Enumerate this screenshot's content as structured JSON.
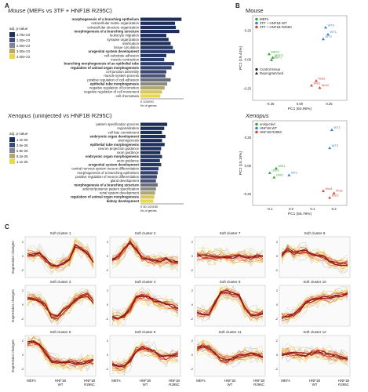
{
  "panel_a": {
    "label": "A",
    "mouse": {
      "title": "Mouse (MEFs vs 3TF + HNF1B R295C)",
      "legend_title": "adj. p-value",
      "legend_values": [
        "3.75e-23",
        "1.00e-23",
        "2.00e-23",
        "3.00e-23",
        "4.00e-23"
      ],
      "legend_colors": [
        "#1f2f5c",
        "#3e4b7a",
        "#7d8596",
        "#b8a864",
        "#e8d84a"
      ],
      "terms": [
        {
          "label": "morphogenesis of a branching epithelium",
          "bold": true,
          "value": 0.95,
          "color": "#1f2f5c"
        },
        {
          "label": "extracellular matrix organization",
          "bold": false,
          "value": 0.8,
          "color": "#1f2f5c"
        },
        {
          "label": "extracellular structure organization",
          "bold": false,
          "value": 0.82,
          "color": "#1f2f5c"
        },
        {
          "label": "morphogenesis of a branching structure",
          "bold": true,
          "value": 0.9,
          "color": "#1f2f5c"
        },
        {
          "label": "leukocyte migration",
          "bold": false,
          "value": 0.6,
          "color": "#1f2f5c"
        },
        {
          "label": "synapse organization",
          "bold": false,
          "value": 0.65,
          "color": "#1f2f5c"
        },
        {
          "label": "ossification",
          "bold": false,
          "value": 0.7,
          "color": "#1f2f5c"
        },
        {
          "label": "tissue circulation",
          "bold": false,
          "value": 0.75,
          "color": "#263766"
        },
        {
          "label": "urogenital system development",
          "bold": true,
          "value": 0.8,
          "color": "#263766"
        },
        {
          "label": "cell-substrate adhesion",
          "bold": false,
          "value": 0.6,
          "color": "#263766"
        },
        {
          "label": "muscle contraction",
          "bold": false,
          "value": 0.55,
          "color": "#2c3b6a"
        },
        {
          "label": "branching morphogenesis of an epithelial tube",
          "bold": true,
          "value": 0.78,
          "color": "#2c3b6a"
        },
        {
          "label": "regulation of animal organ morphogenesis",
          "bold": true,
          "value": 0.72,
          "color": "#34426e"
        },
        {
          "label": "cell junction assembly",
          "bold": false,
          "value": 0.6,
          "color": "#3c4871"
        },
        {
          "label": "muscle system process",
          "bold": false,
          "value": 0.58,
          "color": "#4a5378"
        },
        {
          "label": "positive regulation of cell adhesion",
          "bold": false,
          "value": 0.7,
          "color": "#6a6f7e"
        },
        {
          "label": "epithelial tube morphogenesis",
          "bold": true,
          "value": 0.62,
          "color": "#8a8a80"
        },
        {
          "label": "negative regulation of locomotion",
          "bold": false,
          "value": 0.56,
          "color": "#b0a670"
        },
        {
          "label": "negative regulation of cell movement",
          "bold": false,
          "value": 0.5,
          "color": "#d6c75a"
        },
        {
          "label": "cell chemotaxis",
          "bold": false,
          "value": 0.46,
          "color": "#e8d84a"
        }
      ],
      "axis_ticks": "0 100200",
      "axis_label": "Nr of genes"
    },
    "xenopus": {
      "title": "Xenopus (uninjected vs HNF1B R295C)",
      "legend_title": "adj. p-value",
      "legend_values": [
        "1.4e-25",
        "3.5e-26",
        "5.8e-26",
        "8.2e-26",
        "1.1e-25"
      ],
      "legend_colors": [
        "#1f2f5c",
        "#3e4b7a",
        "#7d8596",
        "#b8a864",
        "#e8d84a"
      ],
      "terms": [
        {
          "label": "pattern specification process",
          "bold": false,
          "value": 0.62,
          "color": "#1f2f5c"
        },
        {
          "label": "regionalization",
          "bold": false,
          "value": 0.55,
          "color": "#1f2f5c"
        },
        {
          "label": "cell fate commitment",
          "bold": false,
          "value": 0.5,
          "color": "#1f2f5c"
        },
        {
          "label": "embryonic organ development",
          "bold": true,
          "value": 0.58,
          "color": "#1f2f5c"
        },
        {
          "label": "axonogenesis",
          "bold": false,
          "value": 0.5,
          "color": "#1f2f5c"
        },
        {
          "label": "epithelial tube morphogenesis",
          "bold": true,
          "value": 0.56,
          "color": "#1f2f5c"
        },
        {
          "label": "neuron projection guidance",
          "bold": false,
          "value": 0.48,
          "color": "#1f2f5c"
        },
        {
          "label": "axon guidance",
          "bold": false,
          "value": 0.46,
          "color": "#1f2f5c"
        },
        {
          "label": "embryonic organ morphogenesis",
          "bold": true,
          "value": 0.5,
          "color": "#263766"
        },
        {
          "label": "axon guidance",
          "bold": false,
          "value": 0.45,
          "color": "#263766"
        },
        {
          "label": "urogenital system development",
          "bold": true,
          "value": 0.48,
          "color": "#263766"
        },
        {
          "label": "central nervous system neuron differentiation",
          "bold": false,
          "value": 0.42,
          "color": "#2c3b6a"
        },
        {
          "label": "morphogenesis of a branching epithelium",
          "bold": false,
          "value": 0.4,
          "color": "#34426e"
        },
        {
          "label": "positive regulation of neuron differentiation",
          "bold": false,
          "value": 0.38,
          "color": "#3c4871"
        },
        {
          "label": "gland development",
          "bold": false,
          "value": 0.36,
          "color": "#4a5378"
        },
        {
          "label": "morphogenesis of a branching structure",
          "bold": true,
          "value": 0.4,
          "color": "#6a6f7e"
        },
        {
          "label": "anterior/posterior pattern specification",
          "bold": false,
          "value": 0.36,
          "color": "#8a8a80"
        },
        {
          "label": "renal system development",
          "bold": false,
          "value": 0.34,
          "color": "#b0a670"
        },
        {
          "label": "regulation of animal organ morphogenesis",
          "bold": true,
          "value": 0.32,
          "color": "#d6c75a"
        },
        {
          "label": "kidney development",
          "bold": true,
          "value": 0.3,
          "color": "#e8d84a"
        }
      ],
      "axis_ticks": "0 50 100150",
      "axis_label": "Nr of genes"
    }
  },
  "panel_b": {
    "label": "B",
    "mouse": {
      "title": "Mouse",
      "xlabel": "PC1 (63.95%)",
      "ylabel": "PC2 (19.44%)",
      "xticks": [
        "-0.25",
        "0.00",
        "0.25"
      ],
      "yticks": [
        "0.25",
        "0.00",
        "-0.25"
      ],
      "legend": [
        {
          "label": "MEFs",
          "color": "#3aa63a"
        },
        {
          "label": "3TF + HNF1B WT",
          "color": "#3a7fd0"
        },
        {
          "label": "3TF + HNF1B R295C",
          "color": "#d04a3a"
        }
      ],
      "shape_legend": [
        "Control tissue",
        "Reprogrammed"
      ],
      "points": [
        {
          "label": "MEF3",
          "x": -0.23,
          "y": 0.02,
          "color": "#3aa63a"
        },
        {
          "label": "MEF2",
          "x": -0.26,
          "y": 0.05,
          "color": "#3aa63a"
        },
        {
          "label": "MEF1",
          "x": -0.24,
          "y": 0.0,
          "color": "#3aa63a"
        },
        {
          "label": "WT3",
          "x": 0.22,
          "y": 0.28,
          "color": "#3a7fd0"
        },
        {
          "label": "WT1",
          "x": 0.24,
          "y": 0.22,
          "color": "#3a7fd0"
        },
        {
          "label": "WT2",
          "x": 0.2,
          "y": 0.18,
          "color": "#3a7fd0"
        },
        {
          "label": "Mut2",
          "x": 0.14,
          "y": -0.18,
          "color": "#d04a3a"
        },
        {
          "label": "Mut1",
          "x": 0.1,
          "y": -0.22,
          "color": "#d04a3a"
        },
        {
          "label": "Mut3",
          "x": 0.17,
          "y": -0.24,
          "color": "#d04a3a"
        }
      ]
    },
    "xenopus": {
      "title": "Xenopus",
      "xlabel": "PC1 (55.78%)",
      "ylabel": "PC2 (15.15%)",
      "xticks": [
        "-0.1",
        "0.0",
        "0.1",
        "0.2"
      ],
      "yticks": [
        "0.25",
        "0.00",
        "-0.25"
      ],
      "legend": [
        {
          "label": "uninjected",
          "color": "#3aa63a"
        },
        {
          "label": "HNF1B WT",
          "color": "#3a7fd0"
        },
        {
          "label": "HNF1B R295C",
          "color": "#d04a3a"
        }
      ],
      "points": [
        {
          "label": "UNI1",
          "x": -0.07,
          "y": -0.02,
          "color": "#3aa63a"
        },
        {
          "label": "UNI3",
          "x": -0.1,
          "y": -0.06,
          "color": "#3aa63a"
        },
        {
          "label": "UNI2",
          "x": -0.08,
          "y": -0.1,
          "color": "#3aa63a"
        },
        {
          "label": "WT2",
          "x": -0.01,
          "y": -0.08,
          "color": "#3a7fd0"
        },
        {
          "label": "WT1",
          "x": 0.19,
          "y": 0.32,
          "color": "#3a7fd0"
        },
        {
          "label": "WT3",
          "x": 0.18,
          "y": 0.16,
          "color": "#3a7fd0"
        },
        {
          "label": "Mut3",
          "x": 0.15,
          "y": -0.22,
          "color": "#d04a3a"
        },
        {
          "label": "Mut1",
          "x": 0.2,
          "y": -0.24,
          "color": "#d04a3a"
        },
        {
          "label": "Mut2",
          "x": 0.18,
          "y": -0.28,
          "color": "#d04a3a"
        }
      ]
    }
  },
  "panel_c": {
    "label": "C",
    "ylabel": "Expression changes",
    "xlabels": [
      "MEFs",
      "HNF1B\nWT",
      "HNF1B\nR295C"
    ],
    "clusters": [
      {
        "title": "Soft cluster 1",
        "profile": [
          0.2,
          0.2,
          0.3,
          -0.2,
          -0.6,
          -0.7,
          -0.5,
          -0.2,
          0.9,
          0.6,
          0.3,
          -0.4
        ]
      },
      {
        "title": "Soft cluster 2",
        "profile": [
          -0.2,
          0.0,
          0.6,
          1.1,
          0.6,
          0.0,
          -0.2,
          -0.3,
          -0.3,
          -0.2,
          -0.3,
          -0.4
        ]
      },
      {
        "title": "Soft cluster 7",
        "profile": [
          0.1,
          0.1,
          0.1,
          0.0,
          0.1,
          0.0,
          0.0,
          0.1,
          0.0,
          0.0,
          0.1,
          0.0
        ]
      },
      {
        "title": "Soft cluster 8",
        "profile": [
          0.2,
          0.6,
          0.3,
          0.4,
          0.5,
          0.2,
          0.1,
          0.0,
          -0.3,
          -0.5,
          -0.6,
          -0.5
        ]
      },
      {
        "title": "Soft cluster 3",
        "profile": [
          0.5,
          0.6,
          0.4,
          0.0,
          -0.8,
          -0.9,
          -0.4,
          -0.1,
          0.5,
          0.7,
          0.8,
          0.3
        ]
      },
      {
        "title": "Soft cluster 4",
        "profile": [
          -0.9,
          -0.9,
          -0.8,
          -0.2,
          0.6,
          0.8,
          0.7,
          0.4,
          0.2,
          0.1,
          0.0,
          -0.2
        ]
      },
      {
        "title": "Soft cluster 9",
        "profile": [
          -0.5,
          -0.6,
          -0.6,
          0.2,
          1.0,
          1.1,
          0.9,
          0.8,
          -0.2,
          -0.7,
          -0.7,
          -0.6
        ]
      },
      {
        "title": "Soft cluster 10",
        "profile": [
          -0.9,
          -0.8,
          -0.7,
          -0.3,
          0.2,
          0.4,
          0.5,
          0.6,
          0.6,
          0.7,
          0.8,
          0.9
        ]
      },
      {
        "title": "Soft cluster 5",
        "profile": [
          1.0,
          1.1,
          0.9,
          0.3,
          -0.4,
          -0.5,
          -0.6,
          -0.5,
          -0.5,
          -0.6,
          -0.5,
          -0.4
        ]
      },
      {
        "title": "Soft cluster 6",
        "profile": [
          -0.7,
          -0.8,
          -0.8,
          -0.4,
          0.4,
          0.6,
          0.5,
          0.3,
          0.0,
          -0.1,
          0.0,
          0.1
        ]
      },
      {
        "title": "Soft cluster 11",
        "profile": [
          0.6,
          0.7,
          0.6,
          0.2,
          -0.2,
          -0.3,
          -0.2,
          0.0,
          0.1,
          0.2,
          0.1,
          0.0
        ]
      },
      {
        "title": "Soft cluster 12",
        "profile": [
          0.1,
          0.2,
          0.2,
          0.1,
          0.1,
          0.2,
          0.3,
          0.2,
          0.1,
          0.0,
          -0.1,
          -0.2
        ]
      }
    ]
  }
}
